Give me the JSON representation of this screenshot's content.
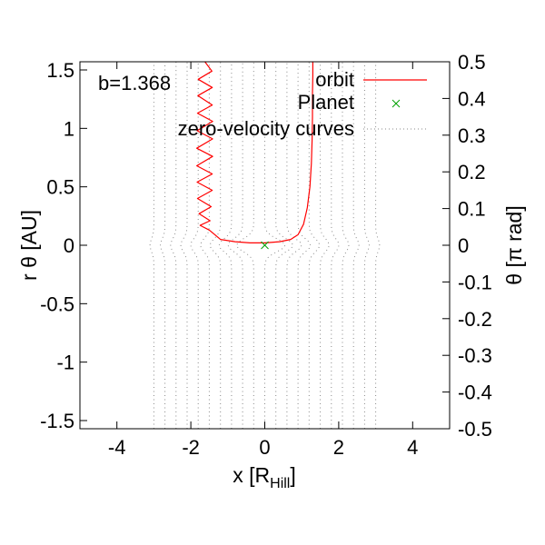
{
  "chart_data": {
    "type": "line",
    "annotation": "b=1.368",
    "xlabel": {
      "main": "x [R",
      "sub": "Hill",
      "close": "]"
    },
    "ylabel": "r θ [AU]",
    "y2label": "θ [π rad]",
    "xlim": [
      -5,
      5
    ],
    "ylim": [
      -1.57,
      1.57
    ],
    "y2lim": [
      -0.5,
      0.5
    ],
    "x_ticks": [
      -4,
      -2,
      0,
      2,
      4
    ],
    "y_ticks": [
      -1.5,
      -1,
      -0.5,
      0,
      0.5,
      1,
      1.5
    ],
    "y2_ticks": [
      -0.5,
      -0.4,
      -0.3,
      -0.2,
      -0.1,
      0,
      0.1,
      0.2,
      0.3,
      0.4,
      0.5
    ],
    "x_tick_labels": [
      "-4",
      "-2",
      "0",
      "2",
      "4"
    ],
    "y_tick_labels": [
      "-1.5",
      "-1",
      "-0.5",
      "0",
      "0.5",
      "1",
      "1.5"
    ],
    "y2_tick_labels": [
      "-0.5",
      "-0.4",
      "-0.3",
      "-0.2",
      "-0.1",
      "0",
      "0.1",
      "0.2",
      "0.3",
      "0.4",
      "0.5"
    ],
    "legend_position": "top-right",
    "series": [
      {
        "name": "orbit",
        "style": "line",
        "color": "#ff0000",
        "points": [
          [
            1.3,
            1.57
          ],
          [
            1.3,
            1.45
          ],
          [
            1.29,
            1.3
          ],
          [
            1.29,
            1.1
          ],
          [
            1.28,
            0.9
          ],
          [
            1.26,
            0.7
          ],
          [
            1.22,
            0.5
          ],
          [
            1.15,
            0.32
          ],
          [
            1.05,
            0.18
          ],
          [
            0.9,
            0.09
          ],
          [
            0.7,
            0.05
          ],
          [
            0.4,
            0.03
          ],
          [
            0.0,
            0.02
          ],
          [
            -0.4,
            0.02
          ],
          [
            -0.8,
            0.03
          ],
          [
            -1.2,
            0.05
          ],
          [
            -1.35,
            0.09
          ],
          [
            -1.5,
            0.13
          ],
          [
            -1.75,
            0.17
          ],
          [
            -1.48,
            0.21
          ],
          [
            -1.78,
            0.27
          ],
          [
            -1.45,
            0.33
          ],
          [
            -1.82,
            0.4
          ],
          [
            -1.42,
            0.47
          ],
          [
            -1.83,
            0.54
          ],
          [
            -1.42,
            0.61
          ],
          [
            -1.84,
            0.68
          ],
          [
            -1.41,
            0.76
          ],
          [
            -1.84,
            0.83
          ],
          [
            -1.41,
            0.91
          ],
          [
            -1.83,
            0.98
          ],
          [
            -1.41,
            1.06
          ],
          [
            -1.82,
            1.13
          ],
          [
            -1.42,
            1.2
          ],
          [
            -1.81,
            1.28
          ],
          [
            -1.42,
            1.35
          ],
          [
            -1.8,
            1.42
          ],
          [
            -1.43,
            1.49
          ],
          [
            -1.62,
            1.57
          ]
        ]
      },
      {
        "name": "Planet",
        "style": "marker",
        "color": "#00a000",
        "points": [
          [
            0,
            0
          ]
        ]
      },
      {
        "name": "zero-velocity curves",
        "style": "dotted",
        "color": "#888888"
      }
    ]
  }
}
